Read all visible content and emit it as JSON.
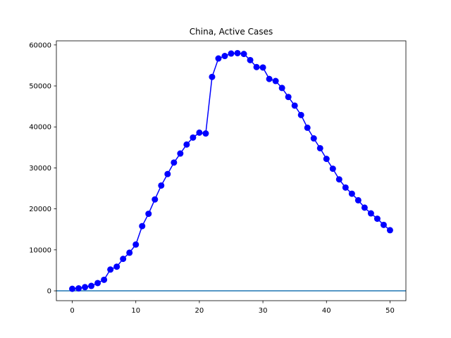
{
  "chart_data": {
    "type": "line",
    "title": "China, Active Cases",
    "xlabel": "",
    "ylabel": "",
    "xlim": [
      -2.5,
      52.5
    ],
    "ylim": [
      -2400,
      61000
    ],
    "xticks": [
      0,
      10,
      20,
      30,
      40,
      50
    ],
    "yticks": [
      0,
      10000,
      20000,
      30000,
      40000,
      50000,
      60000
    ],
    "grid": false,
    "series": [
      {
        "color": "#0000ff",
        "marker": "circle",
        "x": [
          0,
          1,
          2,
          3,
          4,
          5,
          6,
          7,
          8,
          9,
          10,
          11,
          12,
          13,
          14,
          15,
          16,
          17,
          18,
          19,
          20,
          21,
          22,
          23,
          24,
          25,
          26,
          27,
          28,
          29,
          30,
          31,
          32,
          33,
          34,
          35,
          36,
          37,
          38,
          39,
          40,
          41,
          42,
          43,
          44,
          45,
          46,
          47,
          48,
          49,
          50
        ],
        "y": [
          500,
          600,
          900,
          1200,
          1900,
          2700,
          5200,
          5900,
          7800,
          9300,
          11300,
          15800,
          18800,
          22300,
          25700,
          28500,
          31300,
          33500,
          35700,
          37400,
          38600,
          38400,
          52200,
          56700,
          57300,
          57900,
          58000,
          57800,
          56300,
          54600,
          54500,
          51700,
          51200,
          49500,
          47300,
          45200,
          42900,
          39800,
          37200,
          34800,
          32200,
          29800,
          27200,
          25200,
          23700,
          22100,
          20300,
          18900,
          17600,
          16100,
          14800
        ]
      }
    ],
    "reference_line": {
      "y": 0,
      "color": "#1f77b4"
    }
  }
}
